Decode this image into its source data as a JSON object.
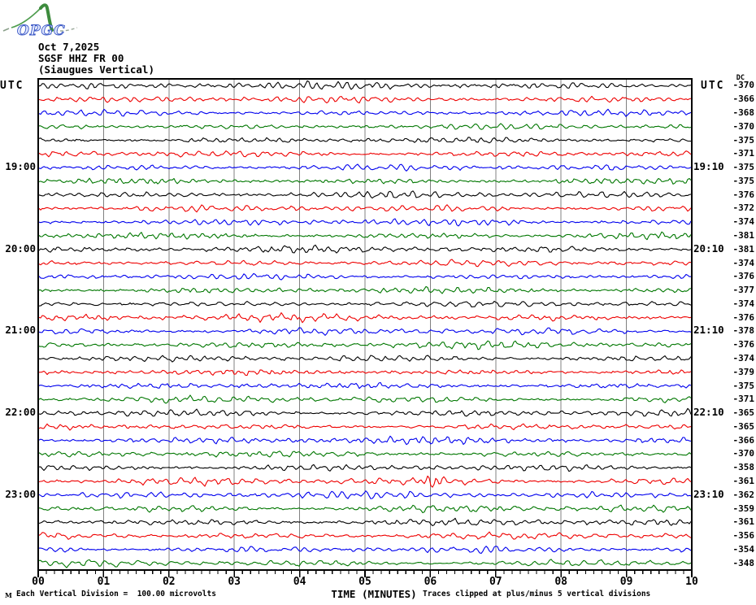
{
  "header": {
    "logo_text": "OPGC",
    "date": "Oct 7,2025",
    "station_code": "SGSF HHZ FR 00",
    "station_name": "(Siaugues Vertical)"
  },
  "left_axis": {
    "title": "UTC"
  },
  "right_axis": {
    "title": "UTC",
    "dc_header": "DC"
  },
  "x_axis": {
    "title": "TIME (MINUTES)",
    "ticks": [
      "00",
      "01",
      "02",
      "03",
      "04",
      "05",
      "06",
      "07",
      "08",
      "09",
      "10"
    ]
  },
  "footer": {
    "glyph": "M",
    "scale_note": "Each Vertical Division =  100.00 microvolts",
    "clip_note": "Traces clipped at plus/minus 5 vertical divisions"
  },
  "chart_data": {
    "type": "line",
    "title": "SGSF HHZ FR 00 (Siaugues Vertical) helicorder, Oct 7,2025",
    "xlabel": "TIME (MINUTES)",
    "x_range_minutes": [
      0,
      10
    ],
    "x_major_ticks": [
      "00",
      "01",
      "02",
      "03",
      "04",
      "05",
      "06",
      "07",
      "08",
      "09",
      "10"
    ],
    "minor_tick_subdivisions": 8,
    "row_duration_minutes": 10,
    "rows_total": 36,
    "grid": true,
    "grid_color": "#808080",
    "amplitude_scale_note": "Each Vertical Division =  100.00 microvolts",
    "clipping_note": "Traces clipped at plus/minus 5 vertical divisions",
    "trace_palette": {
      "black": "#000000",
      "red": "#ee0000",
      "blue": "#0000ee",
      "green": "#007700"
    },
    "waveform": "continuous background seismic noise (not individually labeled)",
    "rows": [
      {
        "start": "18:00",
        "left_label": "",
        "right_label": "",
        "dc": -370,
        "color": "black"
      },
      {
        "start": "18:10",
        "left_label": "",
        "right_label": "",
        "dc": -366,
        "color": "red"
      },
      {
        "start": "18:20",
        "left_label": "",
        "right_label": "",
        "dc": -368,
        "color": "blue"
      },
      {
        "start": "18:30",
        "left_label": "",
        "right_label": "",
        "dc": -370,
        "color": "green"
      },
      {
        "start": "18:40",
        "left_label": "",
        "right_label": "",
        "dc": -375,
        "color": "black"
      },
      {
        "start": "18:50",
        "left_label": "",
        "right_label": "",
        "dc": -371,
        "color": "red"
      },
      {
        "start": "19:00",
        "left_label": "19:00",
        "right_label": "19:10",
        "dc": -375,
        "color": "blue"
      },
      {
        "start": "19:10",
        "left_label": "",
        "right_label": "",
        "dc": -375,
        "color": "green"
      },
      {
        "start": "19:20",
        "left_label": "",
        "right_label": "",
        "dc": -376,
        "color": "black"
      },
      {
        "start": "19:30",
        "left_label": "",
        "right_label": "",
        "dc": -372,
        "color": "red"
      },
      {
        "start": "19:40",
        "left_label": "",
        "right_label": "",
        "dc": -374,
        "color": "blue"
      },
      {
        "start": "19:50",
        "left_label": "",
        "right_label": "",
        "dc": -381,
        "color": "green"
      },
      {
        "start": "20:00",
        "left_label": "20:00",
        "right_label": "20:10",
        "dc": -381,
        "color": "black"
      },
      {
        "start": "20:10",
        "left_label": "",
        "right_label": "",
        "dc": -374,
        "color": "red"
      },
      {
        "start": "20:20",
        "left_label": "",
        "right_label": "",
        "dc": -376,
        "color": "blue"
      },
      {
        "start": "20:30",
        "left_label": "",
        "right_label": "",
        "dc": -377,
        "color": "green"
      },
      {
        "start": "20:40",
        "left_label": "",
        "right_label": "",
        "dc": -374,
        "color": "black"
      },
      {
        "start": "20:50",
        "left_label": "",
        "right_label": "",
        "dc": -376,
        "color": "red"
      },
      {
        "start": "21:00",
        "left_label": "21:00",
        "right_label": "21:10",
        "dc": -378,
        "color": "blue"
      },
      {
        "start": "21:10",
        "left_label": "",
        "right_label": "",
        "dc": -376,
        "color": "green"
      },
      {
        "start": "21:20",
        "left_label": "",
        "right_label": "",
        "dc": -374,
        "color": "black"
      },
      {
        "start": "21:30",
        "left_label": "",
        "right_label": "",
        "dc": -379,
        "color": "red"
      },
      {
        "start": "21:40",
        "left_label": "",
        "right_label": "",
        "dc": -375,
        "color": "blue"
      },
      {
        "start": "21:50",
        "left_label": "",
        "right_label": "",
        "dc": -371,
        "color": "green"
      },
      {
        "start": "22:00",
        "left_label": "22:00",
        "right_label": "22:10",
        "dc": -365,
        "color": "black"
      },
      {
        "start": "22:10",
        "left_label": "",
        "right_label": "",
        "dc": -365,
        "color": "red"
      },
      {
        "start": "22:20",
        "left_label": "",
        "right_label": "",
        "dc": -366,
        "color": "blue"
      },
      {
        "start": "22:30",
        "left_label": "",
        "right_label": "",
        "dc": -370,
        "color": "green"
      },
      {
        "start": "22:40",
        "left_label": "",
        "right_label": "",
        "dc": -358,
        "color": "black"
      },
      {
        "start": "22:50",
        "left_label": "",
        "right_label": "",
        "dc": -361,
        "color": "red",
        "event": {
          "minute": 6.08,
          "amplitude": 8
        }
      },
      {
        "start": "23:00",
        "left_label": "23:00",
        "right_label": "23:10",
        "dc": -362,
        "color": "blue"
      },
      {
        "start": "23:10",
        "left_label": "",
        "right_label": "",
        "dc": -359,
        "color": "green"
      },
      {
        "start": "23:20",
        "left_label": "",
        "right_label": "",
        "dc": -361,
        "color": "black"
      },
      {
        "start": "23:30",
        "left_label": "",
        "right_label": "",
        "dc": -356,
        "color": "red"
      },
      {
        "start": "23:40",
        "left_label": "",
        "right_label": "",
        "dc": -354,
        "color": "blue"
      },
      {
        "start": "23:50",
        "left_label": "",
        "right_label": "",
        "dc": -348,
        "color": "green"
      }
    ]
  }
}
